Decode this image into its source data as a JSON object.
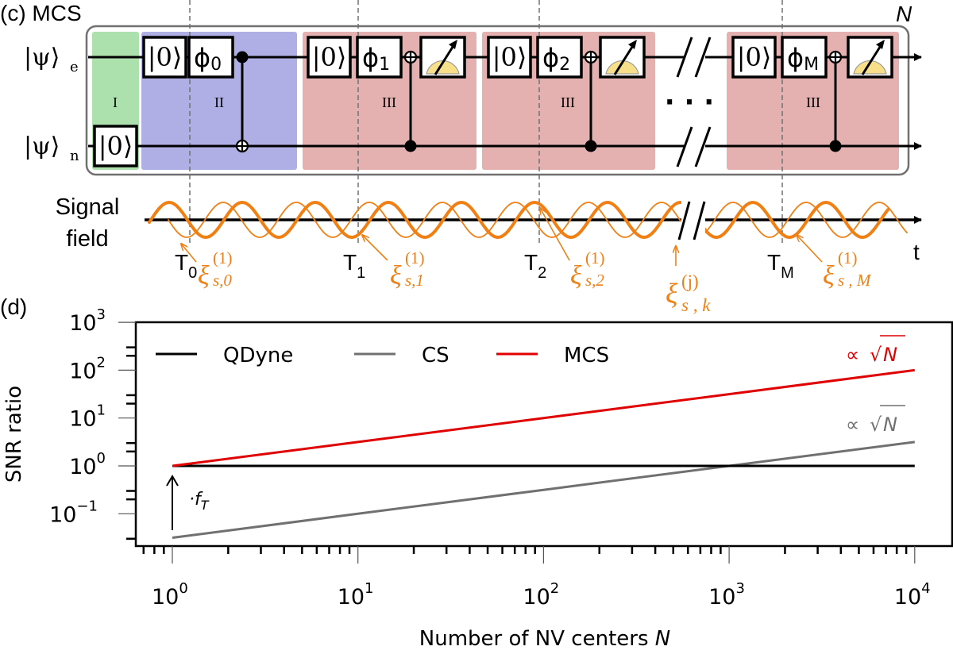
{
  "panel_c": {
    "label": "(c) MCS",
    "repeat_label": "N",
    "qubits": [
      {
        "name": "e",
        "ket": "|ψ⟩",
        "sub": "e"
      },
      {
        "name": "n",
        "ket": "|ψ⟩",
        "sub": "n"
      }
    ],
    "stages": [
      {
        "roman": "I",
        "color": "#ace0ac"
      },
      {
        "roman": "II",
        "color": "#afafe5"
      },
      {
        "roman": "III",
        "color": "#e4b0b0"
      }
    ],
    "gates": {
      "init": "|0⟩",
      "phases": [
        {
          "sym": "ϕ",
          "sub": "0"
        },
        {
          "sym": "ϕ",
          "sub": "1"
        },
        {
          "sym": "ϕ",
          "sub": "2"
        },
        {
          "sym": "ϕ",
          "sub": "M"
        }
      ]
    },
    "ellipsis": "· · ·",
    "signal": {
      "label_line1": "Signal",
      "label_line2": "field",
      "axis_label": "t",
      "wave_color": "#f07f14",
      "times": [
        {
          "sym": "T",
          "sub": "0"
        },
        {
          "sym": "T",
          "sub": "1"
        },
        {
          "sym": "T",
          "sub": "2"
        },
        {
          "sym": "T",
          "sub": "M"
        }
      ],
      "annotations": [
        {
          "sym": "ξ",
          "sup": "(1)",
          "sub": "s,0"
        },
        {
          "sym": "ξ",
          "sup": "(1)",
          "sub": "s,1"
        },
        {
          "sym": "ξ",
          "sup": "(1)",
          "sub": "s,2"
        },
        {
          "sym": "ξ",
          "sup": "(j)",
          "sub": "s , k"
        },
        {
          "sym": "ξ",
          "sup": "(1)",
          "sub": "s , M"
        }
      ]
    }
  },
  "panel_d": {
    "label": "(d)",
    "chart_data": {
      "type": "line",
      "title": "",
      "xlabel": "Number of NV centers N",
      "ylabel": "SNR ratio",
      "xscale": "log",
      "yscale": "log",
      "xlim": [
        0.7,
        20000
      ],
      "ylim": [
        0.0224,
        1000
      ],
      "x_ticks": [
        {
          "value": 1,
          "base": "10",
          "exp": "0"
        },
        {
          "value": 10,
          "base": "10",
          "exp": "1"
        },
        {
          "value": 100,
          "base": "10",
          "exp": "2"
        },
        {
          "value": 1000,
          "base": "10",
          "exp": "3"
        },
        {
          "value": 10000,
          "base": "10",
          "exp": "4"
        }
      ],
      "y_ticks": [
        {
          "value": 1000,
          "base": "10",
          "exp": "3"
        },
        {
          "value": 100,
          "base": "10",
          "exp": "2"
        },
        {
          "value": 10,
          "base": "10",
          "exp": "1"
        },
        {
          "value": 1,
          "base": "10",
          "exp": "0"
        },
        {
          "value": 0.1,
          "base": "10",
          "exp": "−1"
        }
      ],
      "legend_position": "top-left",
      "series": [
        {
          "name": "QDyne",
          "color": "#000000",
          "x": [
            1,
            10000
          ],
          "y": [
            1,
            1
          ]
        },
        {
          "name": "CS",
          "color": "#707070",
          "x": [
            1,
            10,
            100,
            1000,
            10000
          ],
          "y": [
            0.0316,
            0.1,
            0.316,
            1,
            3.16
          ]
        },
        {
          "name": "MCS",
          "color": "#e00000",
          "x": [
            1,
            10,
            100,
            1000,
            10000
          ],
          "y": [
            1,
            3.16,
            10,
            31.6,
            100
          ]
        }
      ],
      "annotations": [
        {
          "text_prefix": "∝ ",
          "text_root": "N",
          "color": "#e00000",
          "series": "MCS"
        },
        {
          "text_prefix": "∝ ",
          "text_root": "N",
          "color": "#707070",
          "series": "CS"
        },
        {
          "text_prefix": "·f",
          "text_sub": "T",
          "color": "#000000",
          "series": "gap arrow"
        }
      ]
    }
  }
}
